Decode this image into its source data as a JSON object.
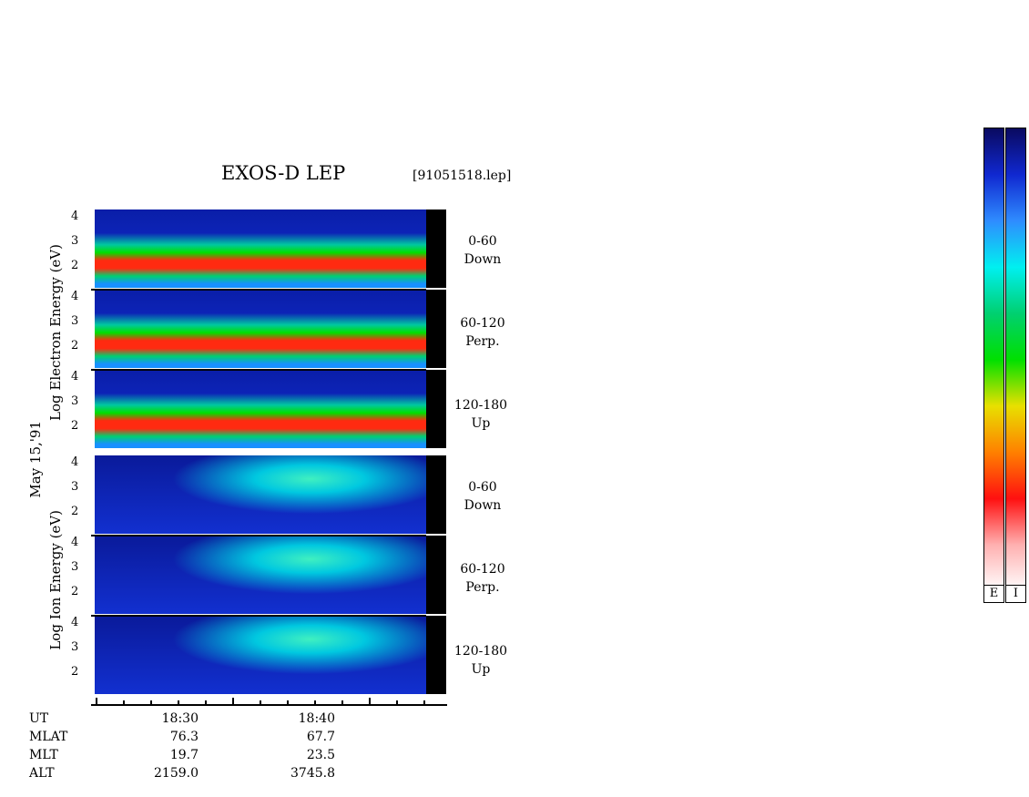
{
  "header": {
    "title": "EXOS-D LEP",
    "file": "[91051518.lep]"
  },
  "side_date": "May 15,'91",
  "electron": {
    "ylabel": "Log  Electron  Energy (eV)",
    "ticks": [
      "4",
      "3",
      "2"
    ],
    "panels": [
      {
        "range": "0-60",
        "dir": "Down"
      },
      {
        "range": "60-120",
        "dir": "Perp."
      },
      {
        "range": "120-180",
        "dir": "Up"
      }
    ]
  },
  "ion": {
    "ylabel": "Log  Ion  Energy (eV)",
    "ticks": [
      "4",
      "3",
      "2"
    ],
    "panels": [
      {
        "range": "0-60",
        "dir": "Down"
      },
      {
        "range": "60-120",
        "dir": "Perp."
      },
      {
        "range": "120-180",
        "dir": "Up"
      }
    ]
  },
  "footer": {
    "rows": [
      {
        "label": "UT",
        "values": [
          "18:30",
          "18:40"
        ]
      },
      {
        "label": "MLAT",
        "values": [
          "76.3",
          "67.7"
        ]
      },
      {
        "label": "MLT",
        "values": [
          "19.7",
          "23.5"
        ]
      },
      {
        "label": "ALT",
        "values": [
          "2159.0",
          "3745.8"
        ]
      }
    ]
  },
  "colorbar": {
    "labels": [
      "E",
      "I"
    ]
  },
  "chart_data": {
    "type": "heatmap",
    "title": "EXOS-D LEP",
    "ylabel_electron": "Log  Electron  Energy (eV)",
    "ylabel_ion": "Log  Ion  Energy (eV)",
    "ylim": [
      1,
      4
    ],
    "yticks": [
      2,
      3,
      4
    ],
    "x_ticks": [
      "18:30",
      "18:40"
    ],
    "colormap": [
      "#0a0a60",
      "#1028d0",
      "#2f8cff",
      "#00f0f0",
      "#00d070",
      "#00e000",
      "#e8e000",
      "#ff8000",
      "#ff1010",
      "#ffb0b0",
      "#ffffff"
    ]
  }
}
